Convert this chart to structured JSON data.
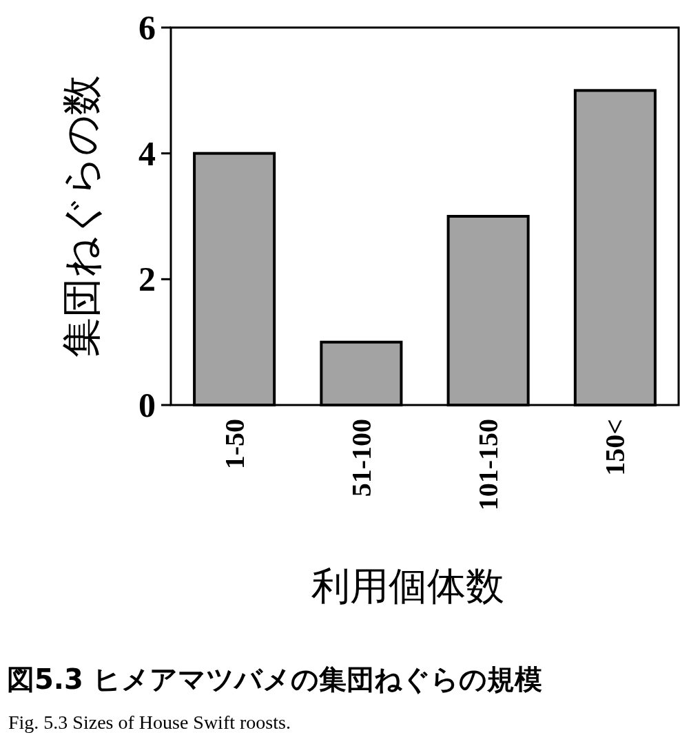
{
  "chart_data": {
    "type": "bar",
    "title": "図5.3 ヒメアマツバメの集団ねぐらの規模",
    "annotations": [
      "Fig. 5.3  Sizes of House Swift roosts."
    ],
    "xlabel": "利用個体数",
    "ylabel": "集団ねぐらの数",
    "categories": [
      "1-50",
      "51-100",
      "101-150",
      "150<"
    ],
    "values": [
      4,
      1,
      3,
      5
    ],
    "color": "#a3a3a3",
    "ylim": [
      0,
      6
    ],
    "yticks": [
      0,
      2,
      4,
      6
    ]
  }
}
